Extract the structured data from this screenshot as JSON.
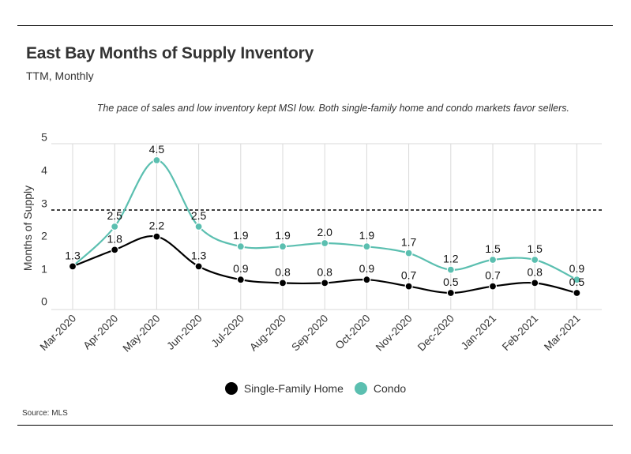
{
  "header": {
    "title": "East Bay Months of Supply Inventory",
    "subtitle": "TTM, Monthly",
    "annotation": "The pace of sales and low inventory kept MSI low. Both single-family home and condo markets favor sellers."
  },
  "source": "Source:  MLS",
  "colors": {
    "sfh": "#000000",
    "condo": "#5bbfb0",
    "grid": "#d9d9d9"
  },
  "chart_data": {
    "type": "line",
    "categories": [
      "Mar-2020",
      "Apr-2020",
      "May-2020",
      "Jun-2020",
      "Jul-2020",
      "Aug-2020",
      "Sep-2020",
      "Oct-2020",
      "Nov-2020",
      "Dec-2020",
      "Jan-2021",
      "Feb-2021",
      "Mar-2021"
    ],
    "series": [
      {
        "name": "Single-Family Home",
        "values": [
          1.3,
          1.8,
          2.2,
          1.3,
          0.9,
          0.8,
          0.8,
          0.9,
          0.7,
          0.5,
          0.7,
          0.8,
          0.5
        ]
      },
      {
        "name": "Condo",
        "values": [
          1.3,
          2.5,
          4.5,
          2.5,
          1.9,
          1.9,
          2.0,
          1.9,
          1.7,
          1.2,
          1.5,
          1.5,
          0.9
        ]
      }
    ],
    "ylabel": "Months of Supply",
    "yticks": [
      0,
      1,
      2,
      3,
      4,
      5
    ],
    "ylim": [
      0,
      5
    ],
    "reference_line": 3,
    "grid": true,
    "legend_position": "bottom"
  }
}
